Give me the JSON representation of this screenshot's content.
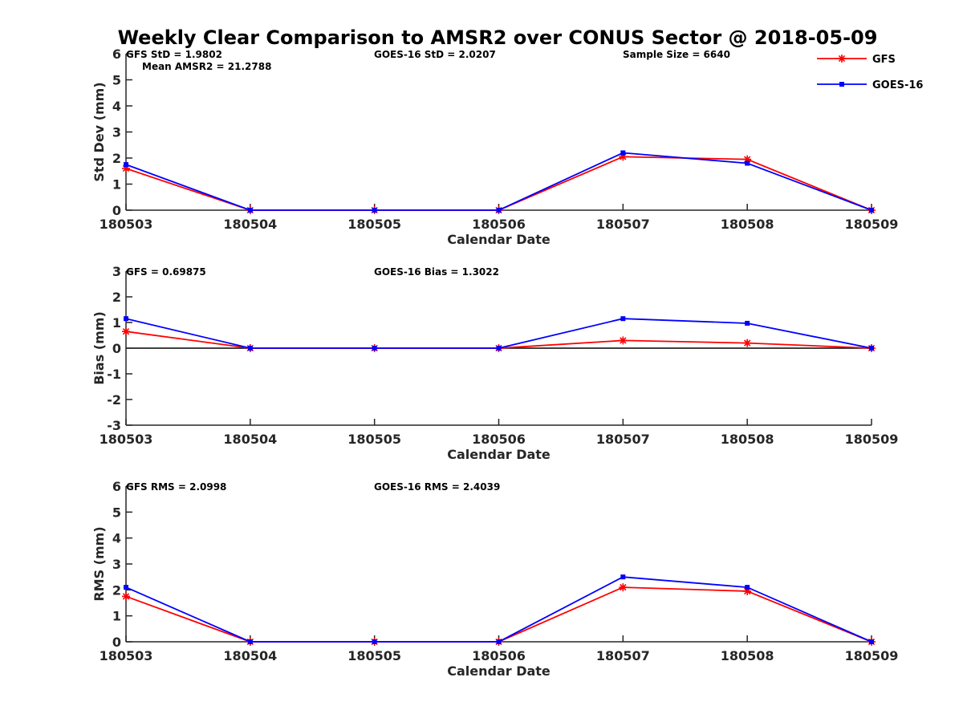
{
  "figure": {
    "title": "Weekly Clear Comparison to AMSR2 over CONUS Sector @ 2018-05-09",
    "legend": {
      "placement": "top-right",
      "entries": [
        {
          "name": "GFS",
          "color": "#ff0000",
          "marker": "asterisk"
        },
        {
          "name": "GOES-16",
          "color": "#0000ff",
          "marker": "square"
        }
      ]
    }
  },
  "chart_data": [
    {
      "type": "line",
      "xlabel": "Calendar Date",
      "ylabel": "Std Dev (mm)",
      "categories": [
        "180503",
        "180504",
        "180505",
        "180506",
        "180507",
        "180508",
        "180509"
      ],
      "ylim": [
        0,
        6
      ],
      "yticks": [
        "0",
        "1",
        "2",
        "3",
        "4",
        "5",
        "6"
      ],
      "zero_line": false,
      "series": [
        {
          "name": "GFS",
          "color": "#ff0000",
          "marker": "asterisk",
          "values": [
            1.6,
            0,
            0,
            0,
            2.05,
            1.95,
            0
          ]
        },
        {
          "name": "GOES-16",
          "color": "#0000ff",
          "marker": "square",
          "values": [
            1.75,
            0,
            0,
            0,
            2.2,
            1.8,
            0
          ]
        }
      ],
      "annotations": [
        {
          "slot": "left",
          "text": "GFS StD = 1.9802"
        },
        {
          "slot": "left2",
          "text": "Mean AMSR2 = 21.2788"
        },
        {
          "slot": "mid",
          "text": "GOES-16 StD = 2.0207"
        },
        {
          "slot": "right",
          "text": "Sample Size = 6640"
        }
      ]
    },
    {
      "type": "line",
      "xlabel": "Calendar Date",
      "ylabel": "Bias (mm)",
      "categories": [
        "180503",
        "180504",
        "180505",
        "180506",
        "180507",
        "180508",
        "180509"
      ],
      "ylim": [
        -3,
        3
      ],
      "yticks": [
        "-3",
        "-2",
        "-1",
        "0",
        "1",
        "2",
        "3"
      ],
      "zero_line": true,
      "series": [
        {
          "name": "GFS",
          "color": "#ff0000",
          "marker": "asterisk",
          "values": [
            0.65,
            0,
            0,
            0,
            0.3,
            0.2,
            0
          ]
        },
        {
          "name": "GOES-16",
          "color": "#0000ff",
          "marker": "square",
          "values": [
            1.15,
            0,
            0,
            0,
            1.15,
            0.97,
            0
          ]
        }
      ],
      "annotations": [
        {
          "slot": "left",
          "text": "GFS = 0.69875"
        },
        {
          "slot": "mid",
          "text": "GOES-16 Bias  = 1.3022"
        }
      ]
    },
    {
      "type": "line",
      "xlabel": "Calendar Date",
      "ylabel": "RMS (mm)",
      "categories": [
        "180503",
        "180504",
        "180505",
        "180506",
        "180507",
        "180508",
        "180509"
      ],
      "ylim": [
        0,
        6
      ],
      "yticks": [
        "0",
        "1",
        "2",
        "3",
        "4",
        "5",
        "6"
      ],
      "zero_line": false,
      "series": [
        {
          "name": "GFS",
          "color": "#ff0000",
          "marker": "asterisk",
          "values": [
            1.75,
            0,
            0,
            0,
            2.1,
            1.95,
            0
          ]
        },
        {
          "name": "GOES-16",
          "color": "#0000ff",
          "marker": "square",
          "values": [
            2.1,
            0,
            0,
            0,
            2.5,
            2.1,
            0
          ]
        }
      ],
      "annotations": [
        {
          "slot": "left",
          "text": "GFS RMS = 2.0998"
        },
        {
          "slot": "mid",
          "text": "GOES-16 RMS = 2.4039"
        }
      ]
    }
  ]
}
